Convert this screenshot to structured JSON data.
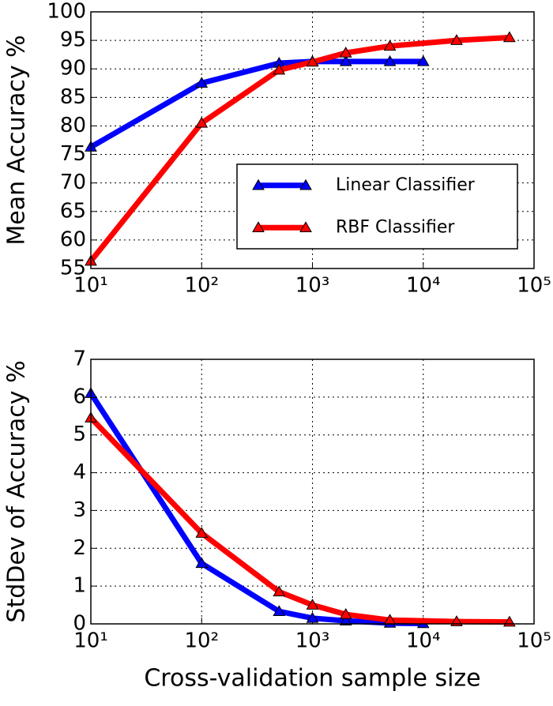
{
  "chart_data": [
    {
      "type": "line",
      "ylabel": "Mean Accuracy %",
      "xscale": "log",
      "grid": true,
      "legend": "lower right",
      "xlim": [
        10,
        100000
      ],
      "xticks": [
        {
          "value": 10,
          "label": "10¹"
        },
        {
          "value": 100,
          "label": "10²"
        },
        {
          "value": 1000,
          "label": "10³"
        },
        {
          "value": 10000,
          "label": "10⁴"
        },
        {
          "value": 100000,
          "label": "10⁵"
        }
      ],
      "ylim": [
        55,
        100
      ],
      "yticks": [
        55,
        60,
        65,
        70,
        75,
        80,
        85,
        90,
        95,
        100
      ],
      "series": [
        {
          "name": "Linear Classifier",
          "color": "#0000ff",
          "x": [
            10,
            100,
            500,
            1000,
            2000,
            5000,
            10000
          ],
          "values": [
            76.3,
            87.5,
            91.0,
            91.3,
            91.3,
            91.3,
            91.3
          ]
        },
        {
          "name": "RBF Classifier",
          "color": "#ff0000",
          "x": [
            10,
            100,
            500,
            1000,
            2000,
            5000,
            20000,
            60000
          ],
          "values": [
            56.3,
            80.5,
            89.8,
            91.2,
            92.8,
            94.0,
            95.0,
            95.5
          ]
        }
      ]
    },
    {
      "type": "line",
      "ylabel": "StdDev of Accuracy %",
      "xlabel": "Cross-validation sample size",
      "xscale": "log",
      "grid": true,
      "xlim": [
        10,
        100000
      ],
      "xticks": [
        {
          "value": 10,
          "label": "10¹"
        },
        {
          "value": 100,
          "label": "10²"
        },
        {
          "value": 1000,
          "label": "10³"
        },
        {
          "value": 10000,
          "label": "10⁴"
        },
        {
          "value": 100000,
          "label": "10⁵"
        }
      ],
      "ylim": [
        0,
        7
      ],
      "yticks": [
        0,
        1,
        2,
        3,
        4,
        5,
        6,
        7
      ],
      "series": [
        {
          "color": "#0000ff",
          "x": [
            10,
            100,
            500,
            1000,
            2000,
            5000,
            10000
          ],
          "values": [
            6.1,
            1.6,
            0.33,
            0.15,
            0.08,
            0.02,
            0.01
          ]
        },
        {
          "color": "#ff0000",
          "x": [
            10,
            100,
            500,
            1000,
            2000,
            5000,
            20000,
            60000
          ],
          "values": [
            5.45,
            2.4,
            0.85,
            0.5,
            0.25,
            0.1,
            0.06,
            0.05
          ]
        }
      ]
    }
  ]
}
